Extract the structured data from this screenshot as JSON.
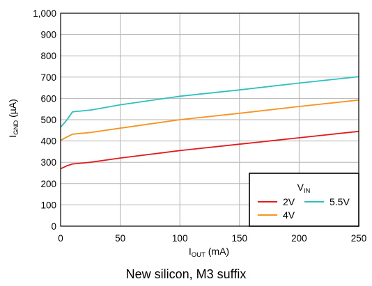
{
  "caption": "New silicon, M3 suffix",
  "chart_data": {
    "type": "line",
    "xlabel": {
      "main": "I",
      "sub": "OUT",
      "rest": " (mA)"
    },
    "ylabel": {
      "main": "I",
      "sub": "GND",
      "rest": " (µA)"
    },
    "xlim": [
      0,
      250
    ],
    "ylim": [
      0,
      1000
    ],
    "xticks": [
      0,
      50,
      100,
      150,
      200,
      250
    ],
    "yticks": [
      0,
      100,
      200,
      300,
      400,
      500,
      600,
      700,
      800,
      900,
      1000
    ],
    "xtick_labels": [
      "0",
      "50",
      "100",
      "150",
      "200",
      "250"
    ],
    "ytick_labels": [
      "0",
      "100",
      "200",
      "300",
      "400",
      "500",
      "600",
      "700",
      "800",
      "900",
      "1,000"
    ],
    "grid": true,
    "legend": {
      "title": {
        "main": "V",
        "sub": "IN"
      },
      "placement": "bottom-right"
    },
    "series": [
      {
        "name": "2V",
        "color": "#e31a1c",
        "x": [
          0,
          5,
          10,
          25,
          50,
          100,
          150,
          200,
          250
        ],
        "y": [
          270,
          283,
          292,
          300,
          320,
          355,
          385,
          415,
          445
        ]
      },
      {
        "name": "4V",
        "color": "#f7941d",
        "x": [
          0,
          5,
          10,
          25,
          50,
          100,
          150,
          200,
          250
        ],
        "y": [
          403,
          418,
          432,
          440,
          460,
          500,
          530,
          562,
          592
        ]
      },
      {
        "name": "5.5V",
        "color": "#2ebfbf",
        "x": [
          0,
          5,
          10,
          25,
          50,
          100,
          150,
          200,
          250
        ],
        "y": [
          465,
          497,
          537,
          545,
          570,
          610,
          640,
          672,
          702
        ]
      }
    ]
  }
}
